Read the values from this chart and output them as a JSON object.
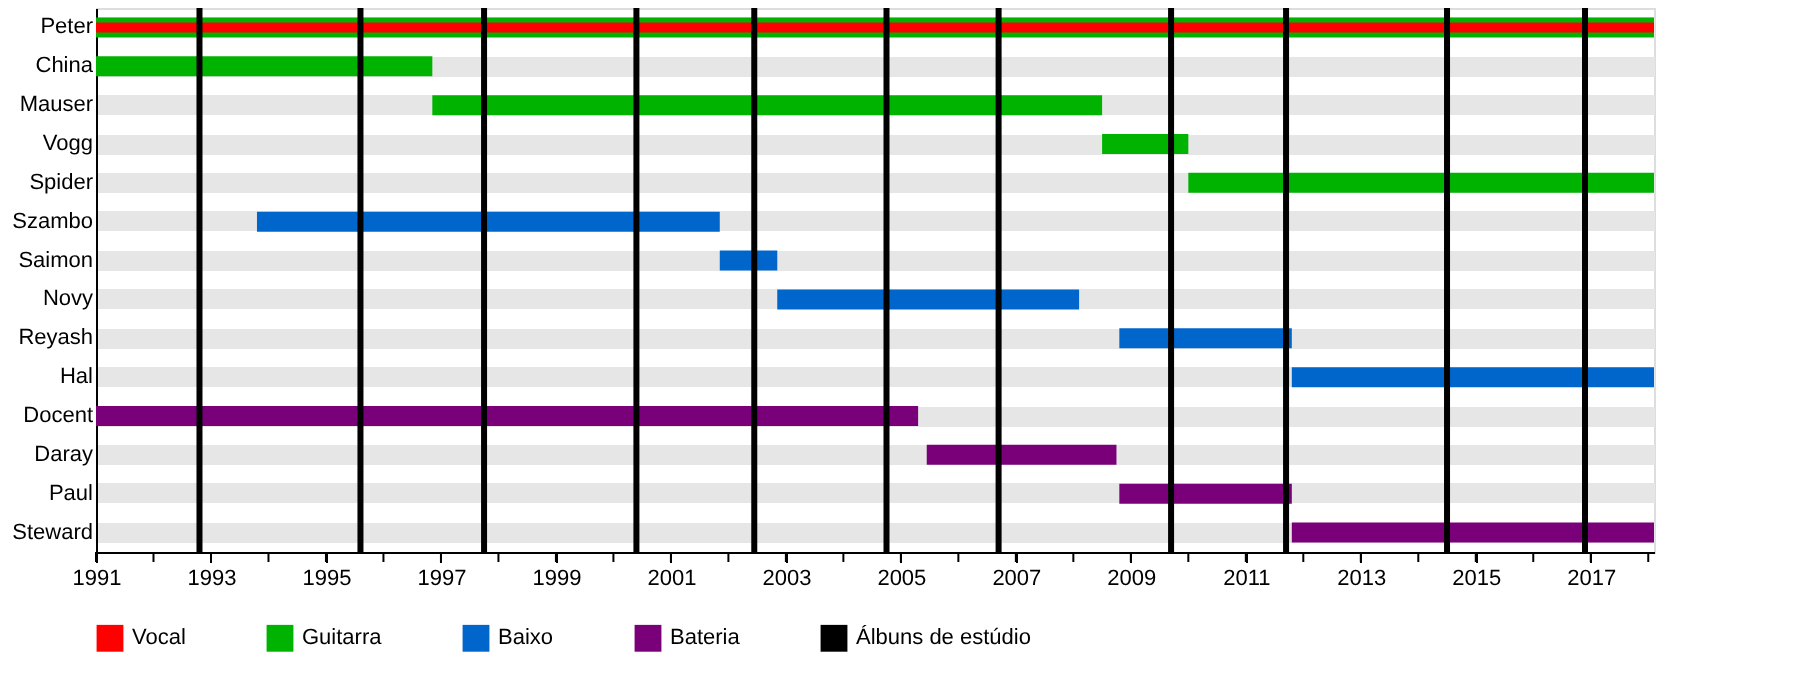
{
  "chart_data": {
    "type": "bar",
    "orientation": "horizontal",
    "categories": [
      "Peter",
      "China",
      "Mauser",
      "Vogg",
      "Spider",
      "Szambo",
      "Saimon",
      "Novy",
      "Reyash",
      "Hal",
      "Docent",
      "Daray",
      "Paul",
      "Steward"
    ],
    "series": [
      {
        "name": "Vocal",
        "color": "#ff0000",
        "values": [
          27.1,
          null,
          null,
          null,
          null,
          null,
          null,
          null,
          null,
          null,
          null,
          null,
          null,
          null
        ],
        "base": [
          1991,
          null,
          null,
          null,
          null,
          null,
          null,
          null,
          null,
          null,
          null,
          null,
          null,
          null
        ]
      },
      {
        "name": "Guitarra",
        "color": "#00b300",
        "values": [
          27.1,
          5.85,
          11.65,
          1.5,
          8.1,
          null,
          null,
          null,
          null,
          null,
          null,
          null,
          null,
          null
        ],
        "base": [
          1991,
          1991,
          1996.85,
          2008.5,
          2010.0,
          null,
          null,
          null,
          null,
          null,
          null,
          null,
          null,
          null
        ]
      },
      {
        "name": "Baixo",
        "color": "#0066cc",
        "values": [
          null,
          null,
          null,
          null,
          null,
          8.05,
          1.0,
          5.25,
          3.0,
          6.3,
          null,
          null,
          null,
          null
        ],
        "base": [
          null,
          null,
          null,
          null,
          null,
          1993.8,
          2001.85,
          2002.85,
          2008.8,
          2011.8,
          null,
          null,
          null,
          null
        ]
      },
      {
        "name": "Bateria",
        "color": "#7a007a",
        "values": [
          null,
          null,
          null,
          null,
          null,
          null,
          null,
          null,
          null,
          null,
          14.3,
          3.3,
          3.0,
          6.3
        ],
        "base": [
          null,
          null,
          null,
          null,
          null,
          null,
          null,
          null,
          null,
          null,
          1991,
          2005.45,
          2008.8,
          2011.8
        ]
      }
    ],
    "xlim": [
      1991,
      2018.1
    ],
    "xticks": [
      1991,
      {
        "value": 1992,
        "label": null
      },
      1993,
      {
        "value": 1994,
        "label": null
      },
      1995,
      {
        "value": 1996,
        "label": null
      },
      1997,
      {
        "value": 1998,
        "label": null
      },
      1999,
      {
        "value": 2000,
        "label": null
      },
      2001,
      {
        "value": 2002,
        "label": null
      },
      2003,
      {
        "value": 2004,
        "label": null
      },
      2005,
      {
        "value": 2006,
        "label": null
      },
      2007,
      {
        "value": 2008,
        "label": null
      },
      2009,
      {
        "value": 2010,
        "label": null
      },
      2011,
      {
        "value": 2012,
        "label": null
      },
      2013,
      {
        "value": 2014,
        "label": null
      },
      2015,
      {
        "value": 2016,
        "label": null
      },
      2017,
      {
        "value": 2018,
        "label": null
      }
    ],
    "ref_lines": [
      {
        "axis": "x",
        "value": 1992.8,
        "label": "Álbuns de estúdio",
        "color": "#000000"
      },
      {
        "axis": "x",
        "value": 1995.6,
        "color": "#000000"
      },
      {
        "axis": "x",
        "value": 1997.75,
        "color": "#000000"
      },
      {
        "axis": "x",
        "value": 2000.4,
        "color": "#000000"
      },
      {
        "axis": "x",
        "value": 2002.45,
        "color": "#000000"
      },
      {
        "axis": "x",
        "value": 2004.75,
        "color": "#000000"
      },
      {
        "axis": "x",
        "value": 2006.7,
        "color": "#000000"
      },
      {
        "axis": "x",
        "value": 2009.7,
        "color": "#000000"
      },
      {
        "axis": "x",
        "value": 2011.7,
        "color": "#000000"
      },
      {
        "axis": "x",
        "value": 2014.5,
        "color": "#000000"
      },
      {
        "axis": "x",
        "value": 2016.9,
        "color": "#000000"
      }
    ],
    "grid": "y",
    "legend": "bottom"
  }
}
